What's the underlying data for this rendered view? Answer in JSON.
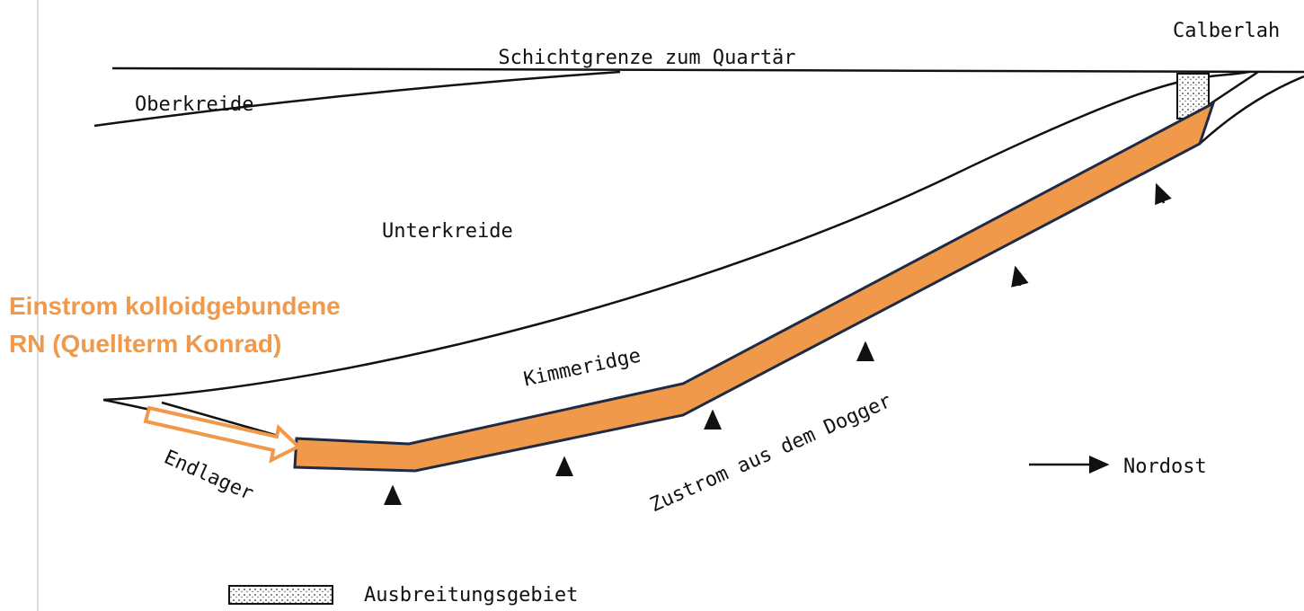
{
  "labels": {
    "calberlah": "Calberlah",
    "quaternary_boundary": "Schichtgrenze zum Quartär",
    "upper_cretaceous": "Oberkreide",
    "lower_cretaceous": "Unterkreide",
    "inflow": [
      "Einstrom kolloidgebundene",
      "RN (Quellterm Konrad)"
    ],
    "kimmeridge": "Kimmeridge",
    "dogger_inflow": "Zustrom aus dem Dogger",
    "repository": "Endlager",
    "northeast": "Nordost"
  },
  "legend": {
    "spreading_area": "Ausbreitungsgebiet"
  }
}
